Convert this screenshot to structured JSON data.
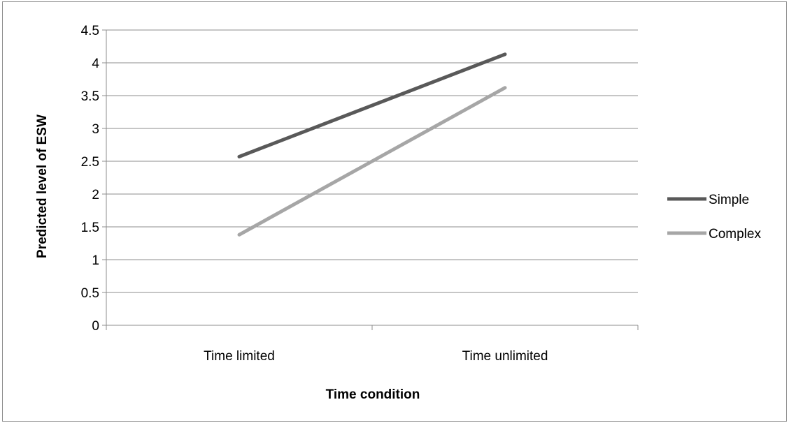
{
  "chart_data": {
    "type": "line",
    "title": "",
    "xlabel": "Time condition",
    "ylabel": "Predicted level of ESW",
    "categories": [
      "Time limited",
      "Time unlimited"
    ],
    "ylim": [
      0,
      4.5
    ],
    "yticks": [
      "0",
      "0.5",
      "1",
      "1.5",
      "2",
      "2.5",
      "3",
      "3.5",
      "4",
      "4.5"
    ],
    "grid": true,
    "legend_position": "right",
    "series": [
      {
        "name": "Simple",
        "values": [
          2.57,
          4.13
        ],
        "color": "#595959"
      },
      {
        "name": "Complex",
        "values": [
          1.38,
          3.62
        ],
        "color": "#a6a6a6"
      }
    ]
  }
}
